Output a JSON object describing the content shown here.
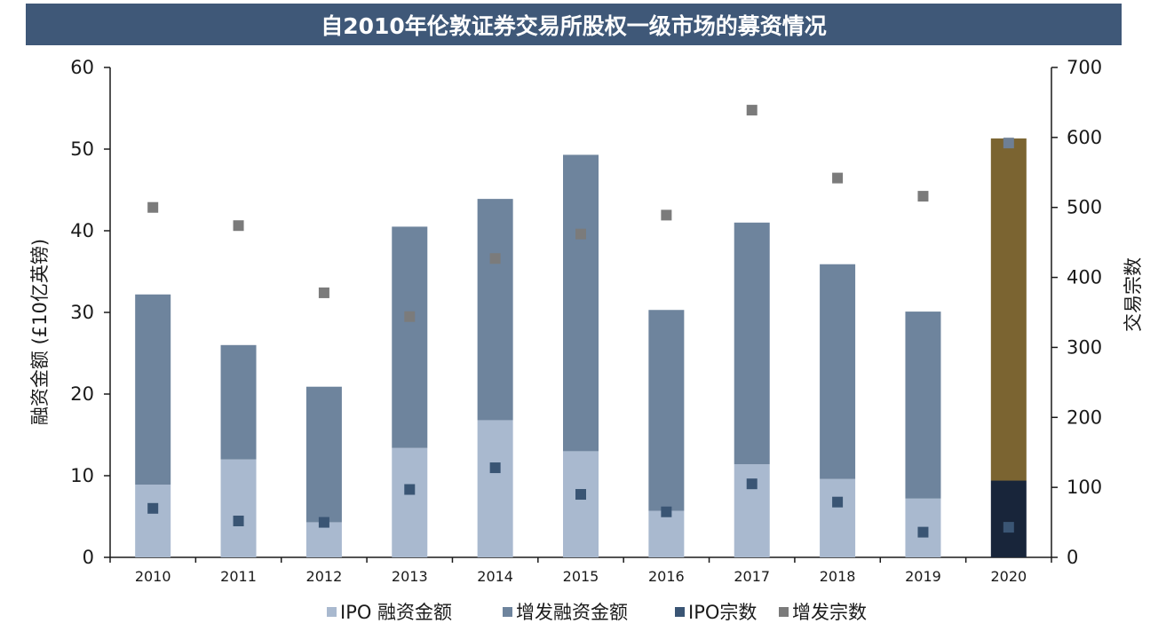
{
  "chart_data": {
    "type": "bar",
    "title": "自2010年伦敦证券交易所股权一级市场的募资情况",
    "ylabel": "融资金额 (£10亿英镑)",
    "y2label": "交易宗数",
    "ylim": [
      0,
      60
    ],
    "y2lim": [
      0,
      700
    ],
    "yticks": [
      "0",
      "10",
      "20",
      "30",
      "40",
      "50",
      "60"
    ],
    "y2ticks": [
      "0",
      "100",
      "200",
      "300",
      "400",
      "500",
      "600",
      "700"
    ],
    "categories": [
      "2010",
      "2011",
      "2012",
      "2013",
      "2014",
      "2015",
      "2016",
      "2017",
      "2018",
      "2019",
      "2020"
    ],
    "series": [
      {
        "name": "IPO 融资金额",
        "kind": "stacked-bar",
        "axis": "left",
        "values": [
          8.9,
          12.0,
          4.3,
          13.4,
          16.8,
          13.0,
          5.7,
          11.4,
          9.6,
          7.2,
          9.4
        ]
      },
      {
        "name": "增发融资金额",
        "kind": "stacked-bar",
        "axis": "left",
        "values": [
          23.3,
          14.0,
          16.6,
          27.1,
          27.1,
          36.3,
          24.6,
          29.6,
          26.3,
          22.9,
          41.9
        ]
      },
      {
        "name": "IPO宗数",
        "kind": "marker",
        "axis": "right",
        "values": [
          70,
          52,
          50,
          97,
          128,
          90,
          65,
          105,
          79,
          36,
          43
        ]
      },
      {
        "name": "增发宗数",
        "kind": "marker",
        "axis": "right",
        "values": [
          500,
          474,
          378,
          344,
          427,
          462,
          489,
          639,
          542,
          516,
          592
        ]
      }
    ],
    "colors": {
      "ipo_bar": "#a9b9cf",
      "sec_bar": "#6e849d",
      "ipo_marker": "#3a5574",
      "sec_marker": "#7b7b7b",
      "highlight_ipo_bar": "#18253a",
      "highlight_sec_bar": "#7b6431",
      "highlight_sec_marker": "#6e7f94",
      "title_bg": "#3f5878"
    },
    "highlight_category": "2020",
    "grid": false,
    "legend_position": "bottom"
  }
}
